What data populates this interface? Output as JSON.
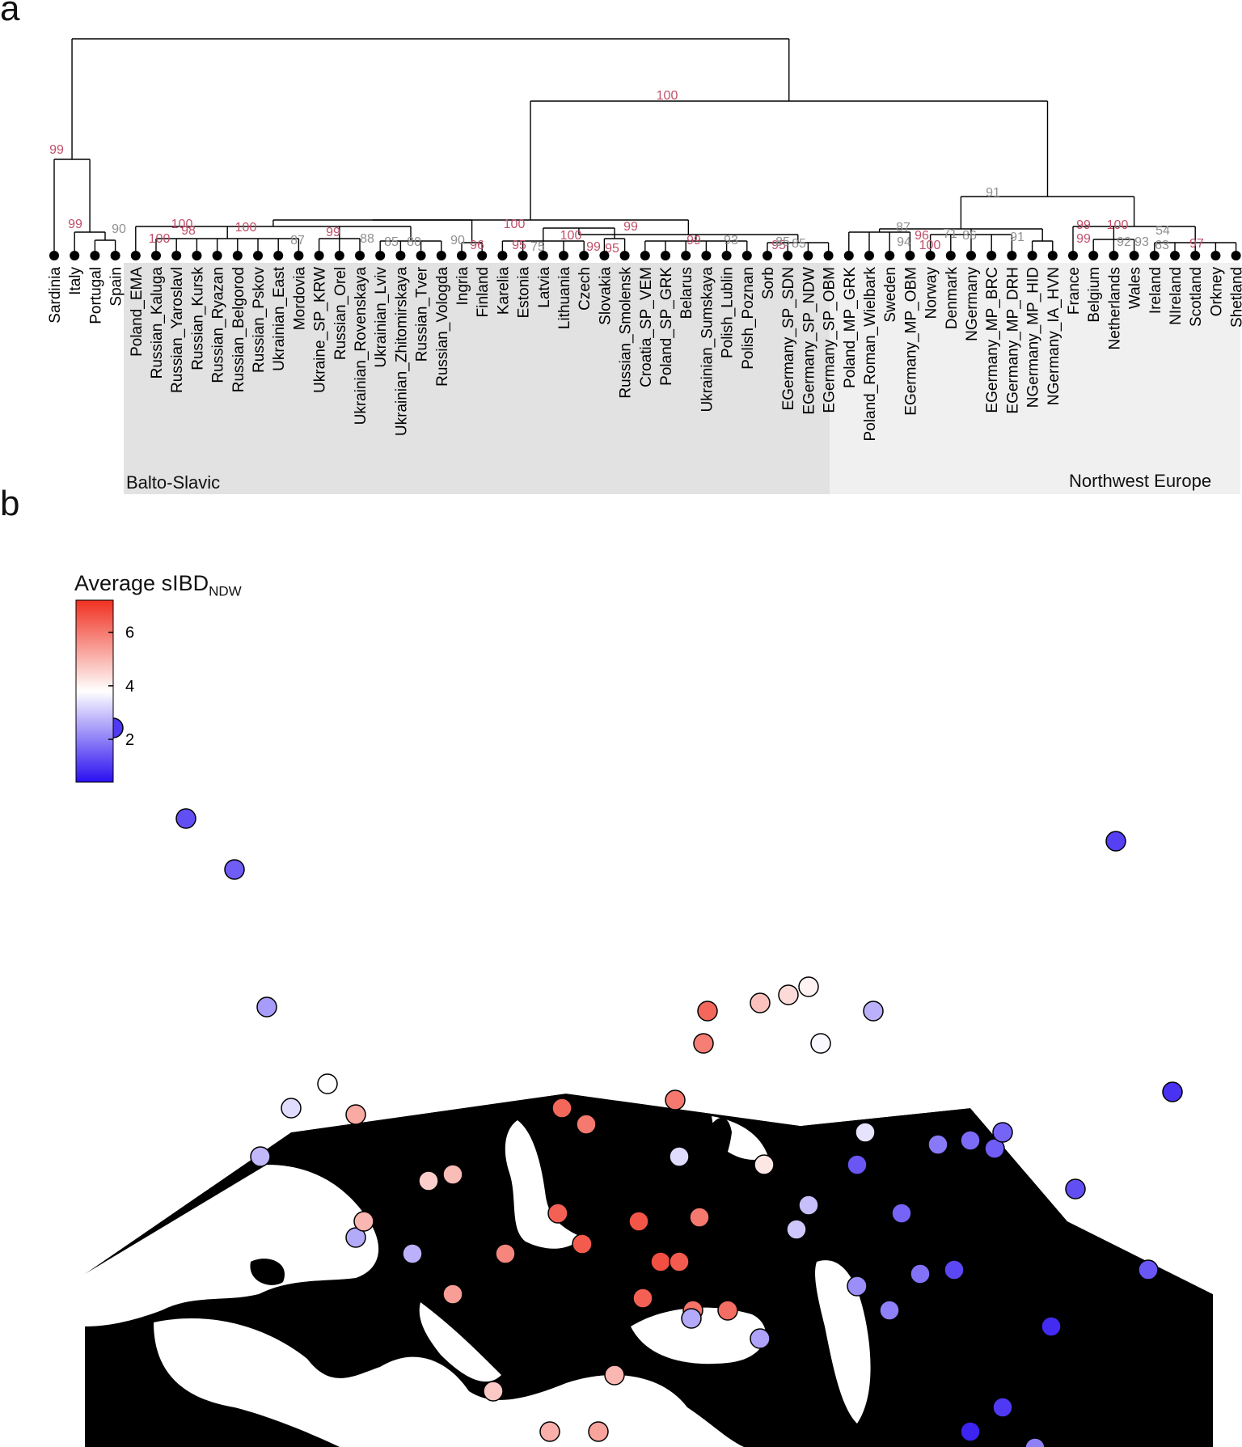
{
  "panels": {
    "a": "a",
    "b": "b"
  },
  "tree": {
    "leaves": [
      "Sardinia",
      "Italy",
      "Portugal",
      "Spain",
      "Poland_EMA",
      "Russian_Kaluga",
      "Russian_Yaroslavl",
      "Russian_Kursk",
      "Russian_Ryazan",
      "Russian_Belgorod",
      "Russian_Pskov",
      "Ukrainian_East",
      "Mordovia",
      "Ukraine_SP_KRW",
      "Russian_Orel",
      "Ukrainian_Rovenskaya",
      "Ukrainian_Lviv",
      "Ukrainian_Zhitomirskaya",
      "Russian_Tver",
      "Russian_Vologda",
      "Ingria",
      "Finland",
      "Karelia",
      "Estonia",
      "Latvia",
      "Lithuania",
      "Czech",
      "Slovakia",
      "Russian_Smolensk",
      "Croatia_SP_VEM",
      "Poland_SP_GRK",
      "Belarus",
      "Ukrainian_Sumskaya",
      "Polish_Lublin",
      "Polish_Poznan",
      "Sorb",
      "EGermany_SP_SDN",
      "EGermany_SP_NDW",
      "EGermany_SP_OBM",
      "Poland_MP_GRK",
      "Poland_Roman_Wielbark",
      "Sweden",
      "EGermany_MP_OBM",
      "Norway",
      "Denmark",
      "NGermany",
      "EGermany_MP_BRC",
      "EGermany_MP_DRH",
      "NGermany_MP_HID",
      "NGermany_IA_HVN",
      "France",
      "Belgium",
      "Netherlands",
      "Wales",
      "Ireland",
      "NIreland",
      "Scotland",
      "Orkney",
      "Shetland"
    ],
    "regions": {
      "balto_slavic": "Balto-Slavic",
      "northwest_europe": "Northwest Europe"
    },
    "bootstrap": [
      {
        "v": "100",
        "c": "red"
      },
      {
        "v": "99",
        "c": "red"
      },
      {
        "v": "99",
        "c": "red"
      },
      {
        "v": "90",
        "c": "gray"
      },
      {
        "v": "100",
        "c": "red"
      },
      {
        "v": "100",
        "c": "red"
      },
      {
        "v": "98",
        "c": "red"
      },
      {
        "v": "100",
        "c": "red"
      },
      {
        "v": "87",
        "c": "gray"
      },
      {
        "v": "99",
        "c": "red"
      },
      {
        "v": "88",
        "c": "gray"
      },
      {
        "v": "85",
        "c": "gray"
      },
      {
        "v": "80",
        "c": "gray"
      },
      {
        "v": "90",
        "c": "gray"
      },
      {
        "v": "96",
        "c": "red"
      },
      {
        "v": "100",
        "c": "red"
      },
      {
        "v": "95",
        "c": "red"
      },
      {
        "v": "75",
        "c": "gray"
      },
      {
        "v": "100",
        "c": "red"
      },
      {
        "v": "99",
        "c": "red"
      },
      {
        "v": "99",
        "c": "red"
      },
      {
        "v": "95",
        "c": "red"
      },
      {
        "v": "99",
        "c": "red"
      },
      {
        "v": "93",
        "c": "gray"
      },
      {
        "v": "95",
        "c": "red"
      },
      {
        "v": "85",
        "c": "gray"
      },
      {
        "v": "85",
        "c": "gray"
      },
      {
        "v": "91",
        "c": "gray"
      },
      {
        "v": "87",
        "c": "gray"
      },
      {
        "v": "96",
        "c": "red"
      },
      {
        "v": "71",
        "c": "gray"
      },
      {
        "v": "86",
        "c": "gray"
      },
      {
        "v": "94",
        "c": "gray"
      },
      {
        "v": "100",
        "c": "red"
      },
      {
        "v": "91",
        "c": "gray"
      },
      {
        "v": "99",
        "c": "red"
      },
      {
        "v": "100",
        "c": "red"
      },
      {
        "v": "54",
        "c": "gray"
      },
      {
        "v": "99",
        "c": "red"
      },
      {
        "v": "92",
        "c": "gray"
      },
      {
        "v": "93",
        "c": "gray"
      },
      {
        "v": "63",
        "c": "gray"
      },
      {
        "v": "97",
        "c": "red"
      }
    ]
  },
  "colorbar": {
    "title": "Average sIBD",
    "title_sub": "NDW",
    "ticks": [
      "6",
      "4",
      "2"
    ],
    "tick_values": [
      6,
      4,
      2
    ],
    "min": 0.4,
    "max": 7.2
  },
  "colors": {
    "low": "#2a0ff0",
    "mid": "#ffffff",
    "high": "#f03020",
    "red_label": "#c0506a",
    "gray_label": "#909090"
  },
  "map_points": [
    {
      "v": 1.0
    },
    {
      "v": 1.3
    },
    {
      "v": 1.5
    },
    {
      "v": 2.4
    },
    {
      "v": 3.3
    },
    {
      "v": 3.8
    },
    {
      "v": 2.8
    },
    {
      "v": 2.6
    },
    {
      "v": 2.7
    },
    {
      "v": 4.6
    },
    {
      "v": 4.9
    },
    {
      "v": 5.0
    },
    {
      "v": 5.2
    },
    {
      "v": 5.4
    },
    {
      "v": 4.7
    },
    {
      "v": 5.1
    },
    {
      "v": 5.3
    },
    {
      "v": 5.0
    },
    {
      "v": 6.3
    },
    {
      "v": 6.0
    },
    {
      "v": 6.4
    },
    {
      "v": 5.8
    },
    {
      "v": 6.5
    },
    {
      "v": 6.6
    },
    {
      "v": 6.4
    },
    {
      "v": 6.7
    },
    {
      "v": 6.0
    },
    {
      "v": 6.5
    },
    {
      "v": 6.1
    },
    {
      "v": 6.2
    },
    {
      "v": 6.3
    },
    {
      "v": 5.9
    },
    {
      "v": 6.0
    },
    {
      "v": 4.8
    },
    {
      "v": 4.4
    },
    {
      "v": 4.0
    },
    {
      "v": 3.7
    },
    {
      "v": 4.2
    },
    {
      "v": 3.4
    },
    {
      "v": 2.7
    },
    {
      "v": 3.3
    },
    {
      "v": 2.6
    },
    {
      "v": 2.5
    },
    {
      "v": 3.0
    },
    {
      "v": 2.9
    },
    {
      "v": 2.2
    },
    {
      "v": 2.0
    },
    {
      "v": 1.8
    },
    {
      "v": 1.9
    },
    {
      "v": 1.7
    },
    {
      "v": 1.5
    },
    {
      "v": 1.4
    },
    {
      "v": 1.6
    },
    {
      "v": 1.2
    },
    {
      "v": 1.0
    },
    {
      "v": 0.8
    },
    {
      "v": 1.1
    },
    {
      "v": 0.9
    },
    {
      "v": 1.4
    },
    {
      "v": 1.3
    },
    {
      "v": 0.7
    },
    {
      "v": 1.6
    },
    {
      "v": 2.0
    }
  ]
}
